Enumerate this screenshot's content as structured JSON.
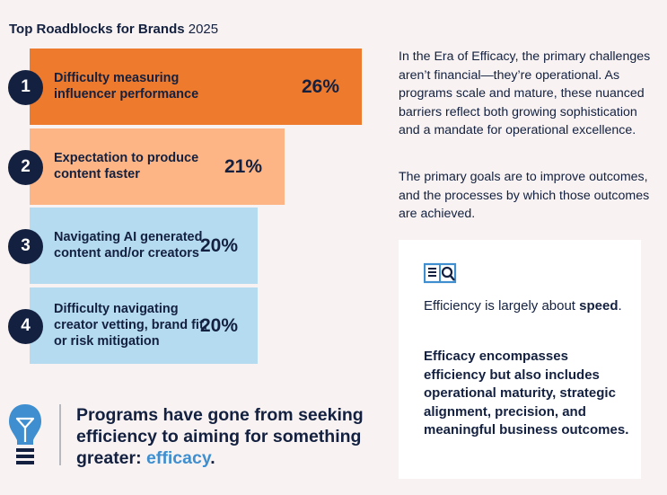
{
  "chart_data": {
    "type": "bar",
    "title_bold": "Top Roadblocks for Brands",
    "title_year": "2025",
    "categories": [
      "Difficulty measuring influencer performance",
      "Expectation to produce content faster",
      "Navigating AI generated content and/or creators",
      "Difficulty navigating creator vetting, brand fit, or risk mitigation"
    ],
    "ranks": [
      "1",
      "2",
      "3",
      "4"
    ],
    "values": [
      26,
      21,
      20,
      20
    ],
    "value_labels": [
      "26%",
      "21%",
      "20%",
      "20%"
    ],
    "colors": [
      "#ee7a2e",
      "#fdb585",
      "#b5dbf1",
      "#b5dbf1"
    ],
    "xlim": [
      0,
      26
    ]
  },
  "bars": [
    {
      "line1": "Difficulty measuring",
      "line2": "influencer performance",
      "line3": ""
    },
    {
      "line1": "Expectation to produce",
      "line2": "content faster",
      "line3": ""
    },
    {
      "line1": "Navigating AI generated",
      "line2": "content and/or creators",
      "line3": ""
    },
    {
      "line1": "Difficulty navigating",
      "line2": "creator vetting, brand fit,",
      "line3": "or risk mitigation"
    }
  ],
  "intro": {
    "p1": "In the Era of Efficacy, the primary challenges aren’t financial—they’re operational. As programs scale and mature, these nuanced barriers reflect both growing sophistication and a mandate for operational excellence.",
    "p2": "The primary goals are to improve outcomes, and the processes by which those outcomes are achieved."
  },
  "card": {
    "icon": "book-magnifier-icon",
    "efficiency_text": "Efficiency is largely about ",
    "efficiency_bold": "speed",
    "efficiency_end": ".",
    "efficacy_text": "Efficacy encompasses efficiency but also includes ",
    "efficacy_bold": "operational maturity, strategic alignment, precision, and meaningful business outcomes",
    "efficacy_end": "."
  },
  "quote": {
    "icon": "lightbulb-icon",
    "text": "Programs have gone from seeking efficiency to aiming for something greater: ",
    "highlight": "efficacy",
    "end": "."
  }
}
